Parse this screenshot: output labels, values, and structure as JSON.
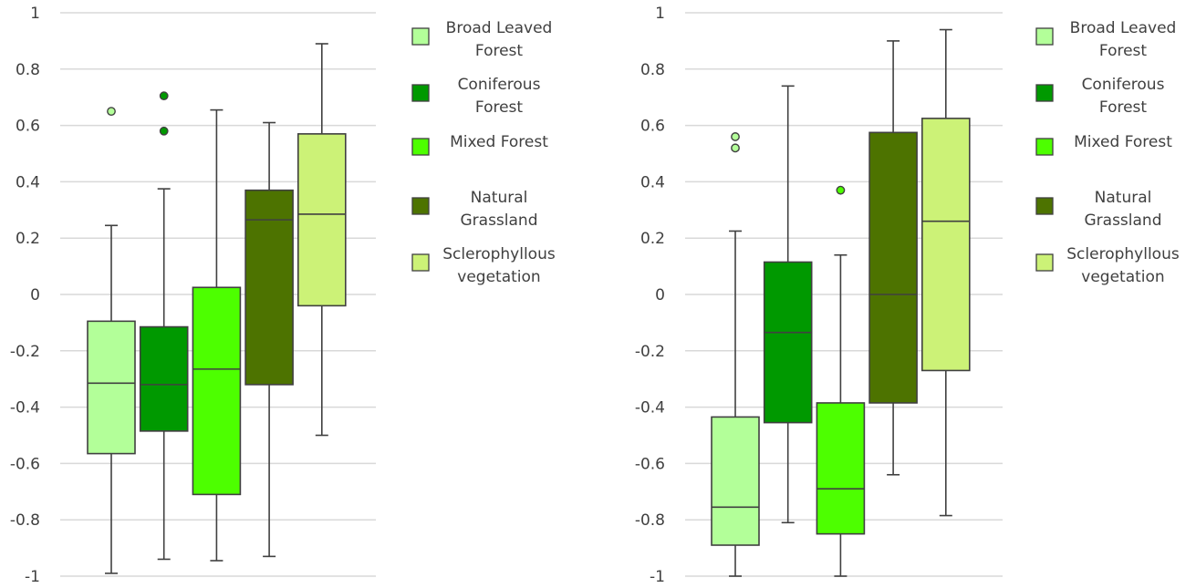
{
  "chart_data": [
    {
      "type": "box",
      "ylim": [
        -1,
        1
      ],
      "yticks": [
        1,
        0.8,
        0.6,
        0.4,
        0.2,
        0,
        -0.2,
        -0.4,
        -0.6,
        -0.8,
        -1
      ],
      "ytick_labels": [
        "1",
        "0.8",
        "0.6",
        "0.4",
        "0.2",
        "0",
        "-0.2",
        "-0.4",
        "-0.6",
        "-0.8",
        "-1"
      ],
      "grid": true,
      "legend_position": "right",
      "series": [
        {
          "name": [
            "Broad Leaved",
            "Forest"
          ],
          "color": "#b3ff99",
          "min": -0.99,
          "q1": -0.565,
          "median": -0.315,
          "q3": -0.095,
          "max": 0.245,
          "outliers": [
            0.65
          ]
        },
        {
          "name": [
            "Coniferous",
            "Forest"
          ],
          "color": "#009900",
          "min": -0.94,
          "q1": -0.485,
          "median": -0.32,
          "q3": -0.115,
          "max": 0.375,
          "outliers": [
            0.705,
            0.58
          ]
        },
        {
          "name": [
            "Mixed Forest"
          ],
          "color": "#4dff00",
          "min": -0.945,
          "q1": -0.71,
          "median": -0.265,
          "q3": 0.025,
          "max": 0.655,
          "outliers": []
        },
        {
          "name": [
            "Natural",
            "Grassland"
          ],
          "color": "#4d7300",
          "min": -0.93,
          "q1": -0.32,
          "median": 0.265,
          "q3": 0.37,
          "max": 0.61,
          "outliers": []
        },
        {
          "name": [
            "Sclerophyllous",
            "vegetation"
          ],
          "color": "#ccf277",
          "min": -0.5,
          "q1": -0.04,
          "median": 0.285,
          "q3": 0.57,
          "max": 0.89,
          "outliers": []
        }
      ]
    },
    {
      "type": "box",
      "ylim": [
        -1,
        1
      ],
      "yticks": [
        1,
        0.8,
        0.6,
        0.4,
        0.2,
        0,
        -0.2,
        -0.4,
        -0.6,
        -0.8,
        -1
      ],
      "ytick_labels": [
        "1",
        "0.8",
        "0.6",
        "0.4",
        "0.2",
        "0",
        "-0.2",
        "-0.4",
        "-0.6",
        "-0.8",
        "-1"
      ],
      "grid": true,
      "legend_position": "right",
      "series": [
        {
          "name": [
            "Broad Leaved",
            "Forest"
          ],
          "color": "#b3ff99",
          "min": -1.0,
          "q1": -0.89,
          "median": -0.755,
          "q3": -0.435,
          "max": 0.225,
          "outliers": [
            0.56,
            0.52
          ]
        },
        {
          "name": [
            "Coniferous",
            "Forest"
          ],
          "color": "#009900",
          "min": -0.81,
          "q1": -0.455,
          "median": -0.135,
          "q3": 0.115,
          "max": 0.74,
          "outliers": []
        },
        {
          "name": [
            "Mixed Forest"
          ],
          "color": "#4dff00",
          "min": -1.0,
          "q1": -0.85,
          "median": -0.69,
          "q3": -0.385,
          "max": 0.14,
          "outliers": [
            0.37
          ]
        },
        {
          "name": [
            "Natural",
            "Grassland"
          ],
          "color": "#4d7300",
          "min": -0.64,
          "q1": -0.385,
          "median": 0.0,
          "q3": 0.575,
          "max": 0.9,
          "outliers": []
        },
        {
          "name": [
            "Sclerophyllous",
            "vegetation"
          ],
          "color": "#ccf277",
          "min": -0.785,
          "q1": -0.27,
          "median": 0.26,
          "q3": 0.625,
          "max": 0.94,
          "outliers": []
        }
      ]
    }
  ]
}
